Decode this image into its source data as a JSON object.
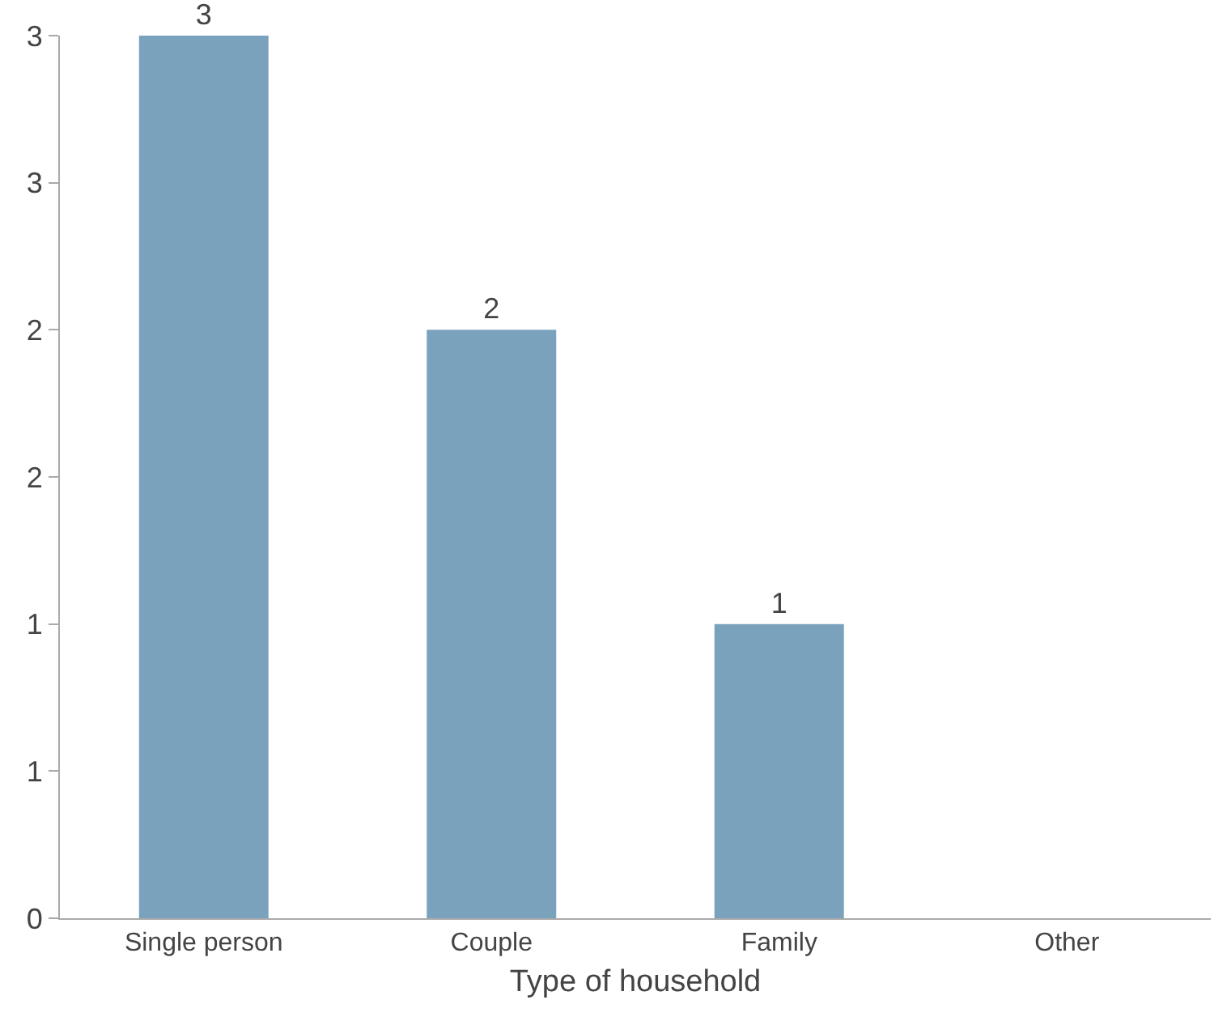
{
  "chart_data": {
    "type": "bar",
    "xlabel": "Type of household",
    "categories": [
      "Single person",
      "Couple",
      "Family",
      "Other"
    ],
    "values": [
      3,
      2,
      1,
      0
    ],
    "color": "#7ba2bd",
    "value_labels": [
      "3",
      "2",
      "1",
      null
    ],
    "ylim": [
      0,
      3
    ],
    "yticks": [
      0,
      {
        "value": 0.5,
        "label": "1"
      },
      1,
      {
        "value": 1.5,
        "label": "2"
      },
      2,
      {
        "value": 2.5,
        "label": "3"
      },
      3
    ],
    "legend": false
  }
}
